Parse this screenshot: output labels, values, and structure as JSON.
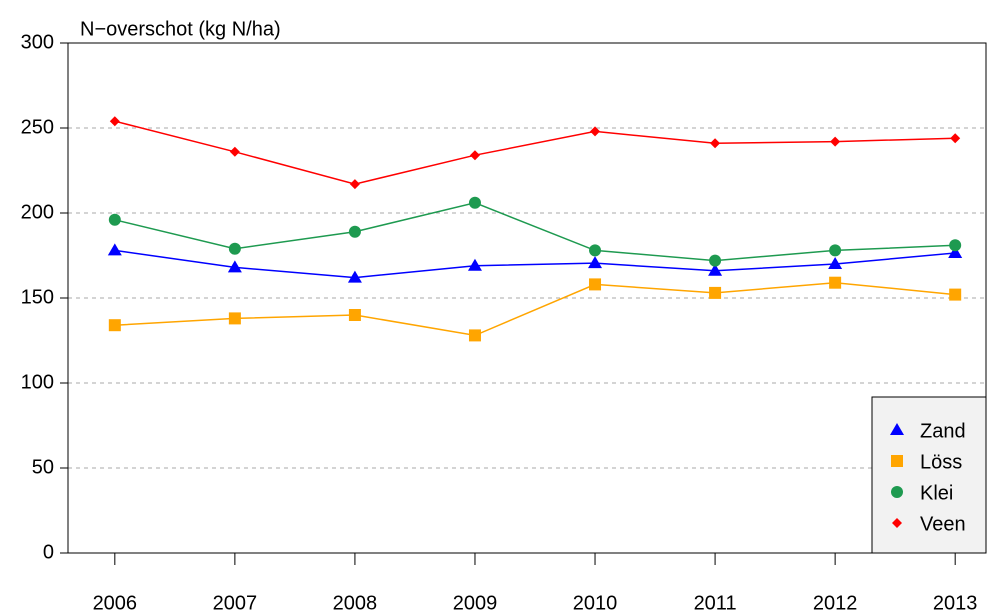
{
  "chart_data": {
    "type": "line",
    "title": "N−overschot (kg N/ha)",
    "x": [
      2006,
      2007,
      2008,
      2009,
      2010,
      2011,
      2012,
      2013
    ],
    "xlim": [
      2005.61,
      2013.39
    ],
    "xticks": [
      2006,
      2007,
      2008,
      2009,
      2010,
      2011,
      2012,
      2013
    ],
    "ylim": [
      0,
      300
    ],
    "yticks": [
      0,
      50,
      100,
      150,
      200,
      250,
      300
    ],
    "grid": true,
    "legend": "bottom-right",
    "series": [
      {
        "name": "Zand",
        "color": "#0000ff",
        "marker": "triangle",
        "values": [
          178,
          168,
          162,
          169,
          170.5,
          166,
          170,
          176.5
        ]
      },
      {
        "name": "Löss",
        "color": "#ffa500",
        "marker": "square",
        "values": [
          134,
          138,
          140,
          128,
          158,
          153,
          159,
          152
        ]
      },
      {
        "name": "Klei",
        "color": "#1e9a50",
        "marker": "circle",
        "values": [
          196,
          179,
          189,
          206,
          178,
          172,
          178,
          181
        ]
      },
      {
        "name": "Veen",
        "color": "#ff0000",
        "marker": "diamond",
        "values": [
          254,
          236,
          217,
          234,
          248,
          241,
          242,
          244
        ]
      }
    ]
  }
}
